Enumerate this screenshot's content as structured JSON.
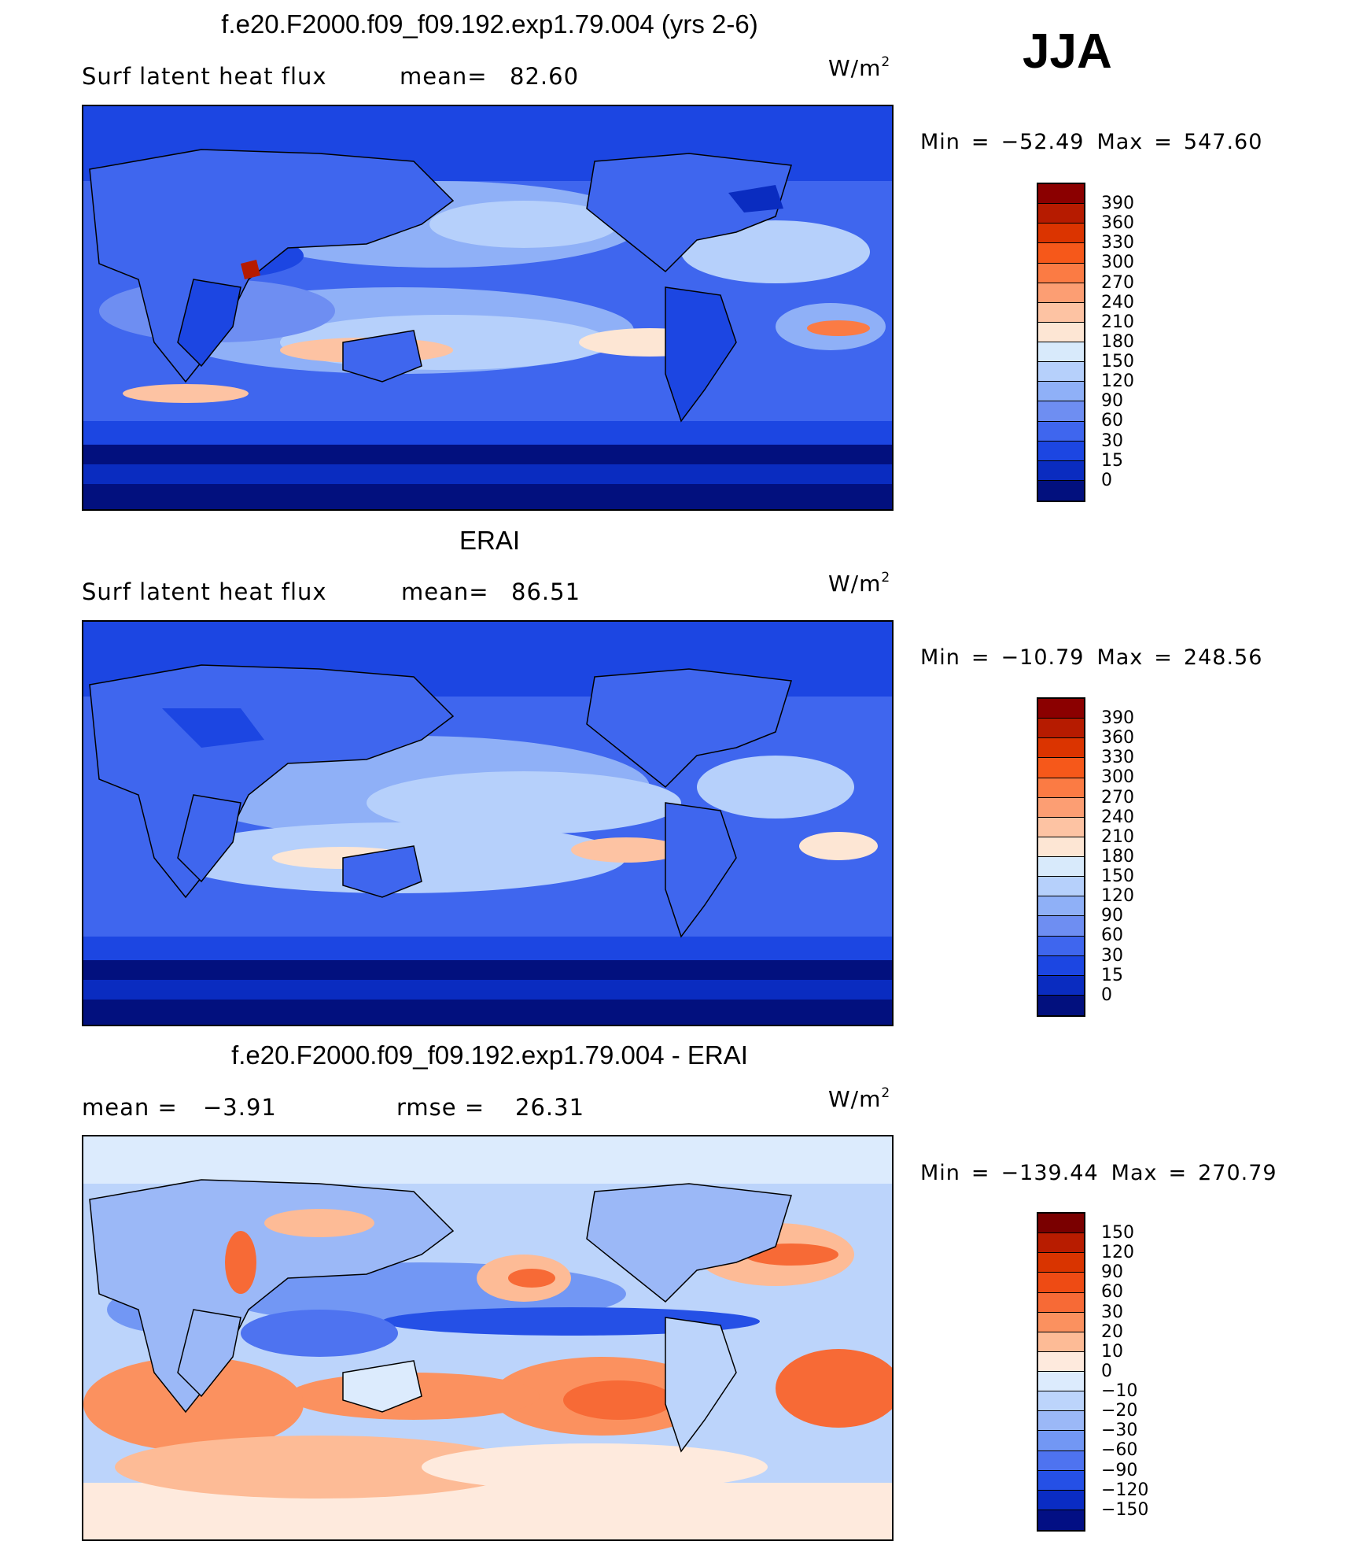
{
  "season": "JJA",
  "colors": {
    "positive": [
      "#7a0000",
      "#b81c00",
      "#e03a0f",
      "#f6621a",
      "#fb8a47",
      "#fcb08a",
      "#fdd0b4",
      "#fff0e6"
    ],
    "negative": [
      "#e6f2fe",
      "#c6dcfb",
      "#a9c4f8",
      "#8eaaf5",
      "#6d8cf2",
      "#4a6ef0",
      "#2752ea",
      "#133ad8",
      "#0924b2",
      "#010e7c"
    ],
    "land_outline": "#000000"
  },
  "panels": [
    {
      "title": "f.e20.F2000.f09_f09.192.exp1.79.004 (yrs 2-6)",
      "subtitle_left": "Surf latent heat flux",
      "mean_label": "mean=",
      "mean_value": "82.60",
      "units": "W/m",
      "units_sup": "2",
      "min_label": "Min",
      "min_value": "−52.49",
      "max_label": "Max",
      "max_value": "547.60",
      "colorbar_levels": [
        "390",
        "360",
        "330",
        "300",
        "270",
        "240",
        "210",
        "180",
        "150",
        "120",
        "90",
        "60",
        "30",
        "15",
        "0"
      ],
      "colorbar_colors": [
        "#8b0000",
        "#b61b00",
        "#db3400",
        "#f6581a",
        "#fb7b44",
        "#fc9e73",
        "#fdc3a3",
        "#fde6d4",
        "#d8eafb",
        "#b6d0fb",
        "#8fb0f7",
        "#6e8ef2",
        "#3f66ee",
        "#1c46e2",
        "#0a2cc0",
        "#02107e"
      ]
    },
    {
      "title": "ERAI",
      "subtitle_left": "Surf latent heat flux",
      "mean_label": "mean=",
      "mean_value": "86.51",
      "units": "W/m",
      "units_sup": "2",
      "min_label": "Min",
      "min_value": "−10.79",
      "max_label": "Max",
      "max_value": "248.56",
      "colorbar_levels": [
        "390",
        "360",
        "330",
        "300",
        "270",
        "240",
        "210",
        "180",
        "150",
        "120",
        "90",
        "60",
        "30",
        "15",
        "0"
      ],
      "colorbar_colors": [
        "#8b0000",
        "#b61b00",
        "#db3400",
        "#f6581a",
        "#fb7b44",
        "#fc9e73",
        "#fdc3a3",
        "#fde6d4",
        "#d8eafb",
        "#b6d0fb",
        "#8fb0f7",
        "#6e8ef2",
        "#3f66ee",
        "#1c46e2",
        "#0a2cc0",
        "#02107e"
      ]
    },
    {
      "title": "f.e20.F2000.f09_f09.192.exp1.79.004 - ERAI",
      "mean_label": "mean =",
      "mean_value": "−3.91",
      "rmse_label": "rmse =",
      "rmse_value": "26.31",
      "units": "W/m",
      "units_sup": "2",
      "min_label": "Min",
      "min_value": "−139.44",
      "max_label": "Max",
      "max_value": "270.79",
      "colorbar_levels": [
        "150",
        "120",
        "90",
        "60",
        "30",
        "20",
        "10",
        "0",
        "−10",
        "−20",
        "−30",
        "−60",
        "−90",
        "−120",
        "−150"
      ],
      "colorbar_colors": [
        "#7a0000",
        "#b81c00",
        "#d93400",
        "#ee4b14",
        "#f76a36",
        "#fb915f",
        "#fdbb96",
        "#feeadd",
        "#dcebfd",
        "#bcd4fb",
        "#9bb8f7",
        "#7297f4",
        "#4e73f0",
        "#2550e6",
        "#0a2cc4",
        "#020f84"
      ]
    }
  ]
}
